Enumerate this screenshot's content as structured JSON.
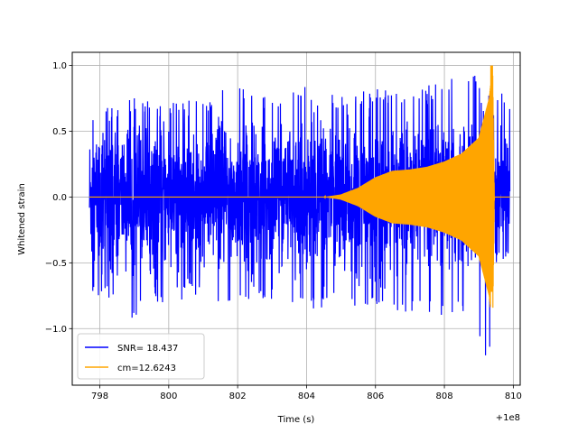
{
  "chart_data": {
    "type": "line",
    "xlabel": "Time (s)",
    "ylabel": "Whitened strain",
    "offset_label": "+1e8",
    "xlim": [
      797.2,
      810.2
    ],
    "ylim": [
      -1.43,
      1.1
    ],
    "x_ticks": [
      798,
      800,
      802,
      804,
      806,
      808,
      810
    ],
    "x_tick_labels": [
      "798",
      "800",
      "802",
      "804",
      "806",
      "808",
      "810"
    ],
    "y_ticks": [
      -1.0,
      -0.5,
      0.0,
      0.5,
      1.0
    ],
    "y_tick_labels": [
      "−1.0",
      "−0.5",
      "0.0",
      "0.5",
      "1.0"
    ],
    "grid": true,
    "legend_position": "lower-left",
    "series": [
      {
        "name": "SNR= 18.437",
        "color": "#0000ff",
        "x_range": [
          797.7,
          809.9
        ],
        "noise_amplitude": 0.62,
        "envelope_points": [
          [
            797.7,
            0.65,
            -0.81
          ],
          [
            798.3,
            0.68,
            -0.77
          ],
          [
            799.0,
            0.75,
            -0.95
          ],
          [
            800.0,
            0.71,
            -0.79
          ],
          [
            801.0,
            0.75,
            -0.78
          ],
          [
            802.0,
            0.87,
            -0.81
          ],
          [
            803.0,
            0.75,
            -0.78
          ],
          [
            804.0,
            0.84,
            -0.91
          ],
          [
            805.0,
            0.77,
            -0.84
          ],
          [
            806.0,
            0.82,
            -0.85
          ],
          [
            807.0,
            0.83,
            -0.88
          ],
          [
            808.0,
            0.88,
            -0.91
          ],
          [
            808.9,
            1.0,
            -0.93
          ],
          [
            809.2,
            0.85,
            -1.3
          ],
          [
            809.9,
            0.78,
            -0.74
          ]
        ]
      },
      {
        "name": "cm=12.6243",
        "color": "#ffa500",
        "x_range": [
          797.7,
          809.9
        ],
        "merger_time": 809.4,
        "peak": 1.0,
        "trough": -0.72,
        "envelope_points": [
          [
            797.7,
            0.0
          ],
          [
            804.5,
            0.0
          ],
          [
            805.0,
            0.02
          ],
          [
            805.5,
            0.07
          ],
          [
            806.0,
            0.15
          ],
          [
            806.5,
            0.2
          ],
          [
            807.0,
            0.21
          ],
          [
            807.5,
            0.23
          ],
          [
            808.0,
            0.27
          ],
          [
            808.5,
            0.33
          ],
          [
            809.0,
            0.45
          ],
          [
            809.3,
            0.75
          ],
          [
            809.4,
            1.0
          ],
          [
            809.45,
            0.0
          ],
          [
            809.9,
            0.0
          ]
        ]
      }
    ]
  }
}
